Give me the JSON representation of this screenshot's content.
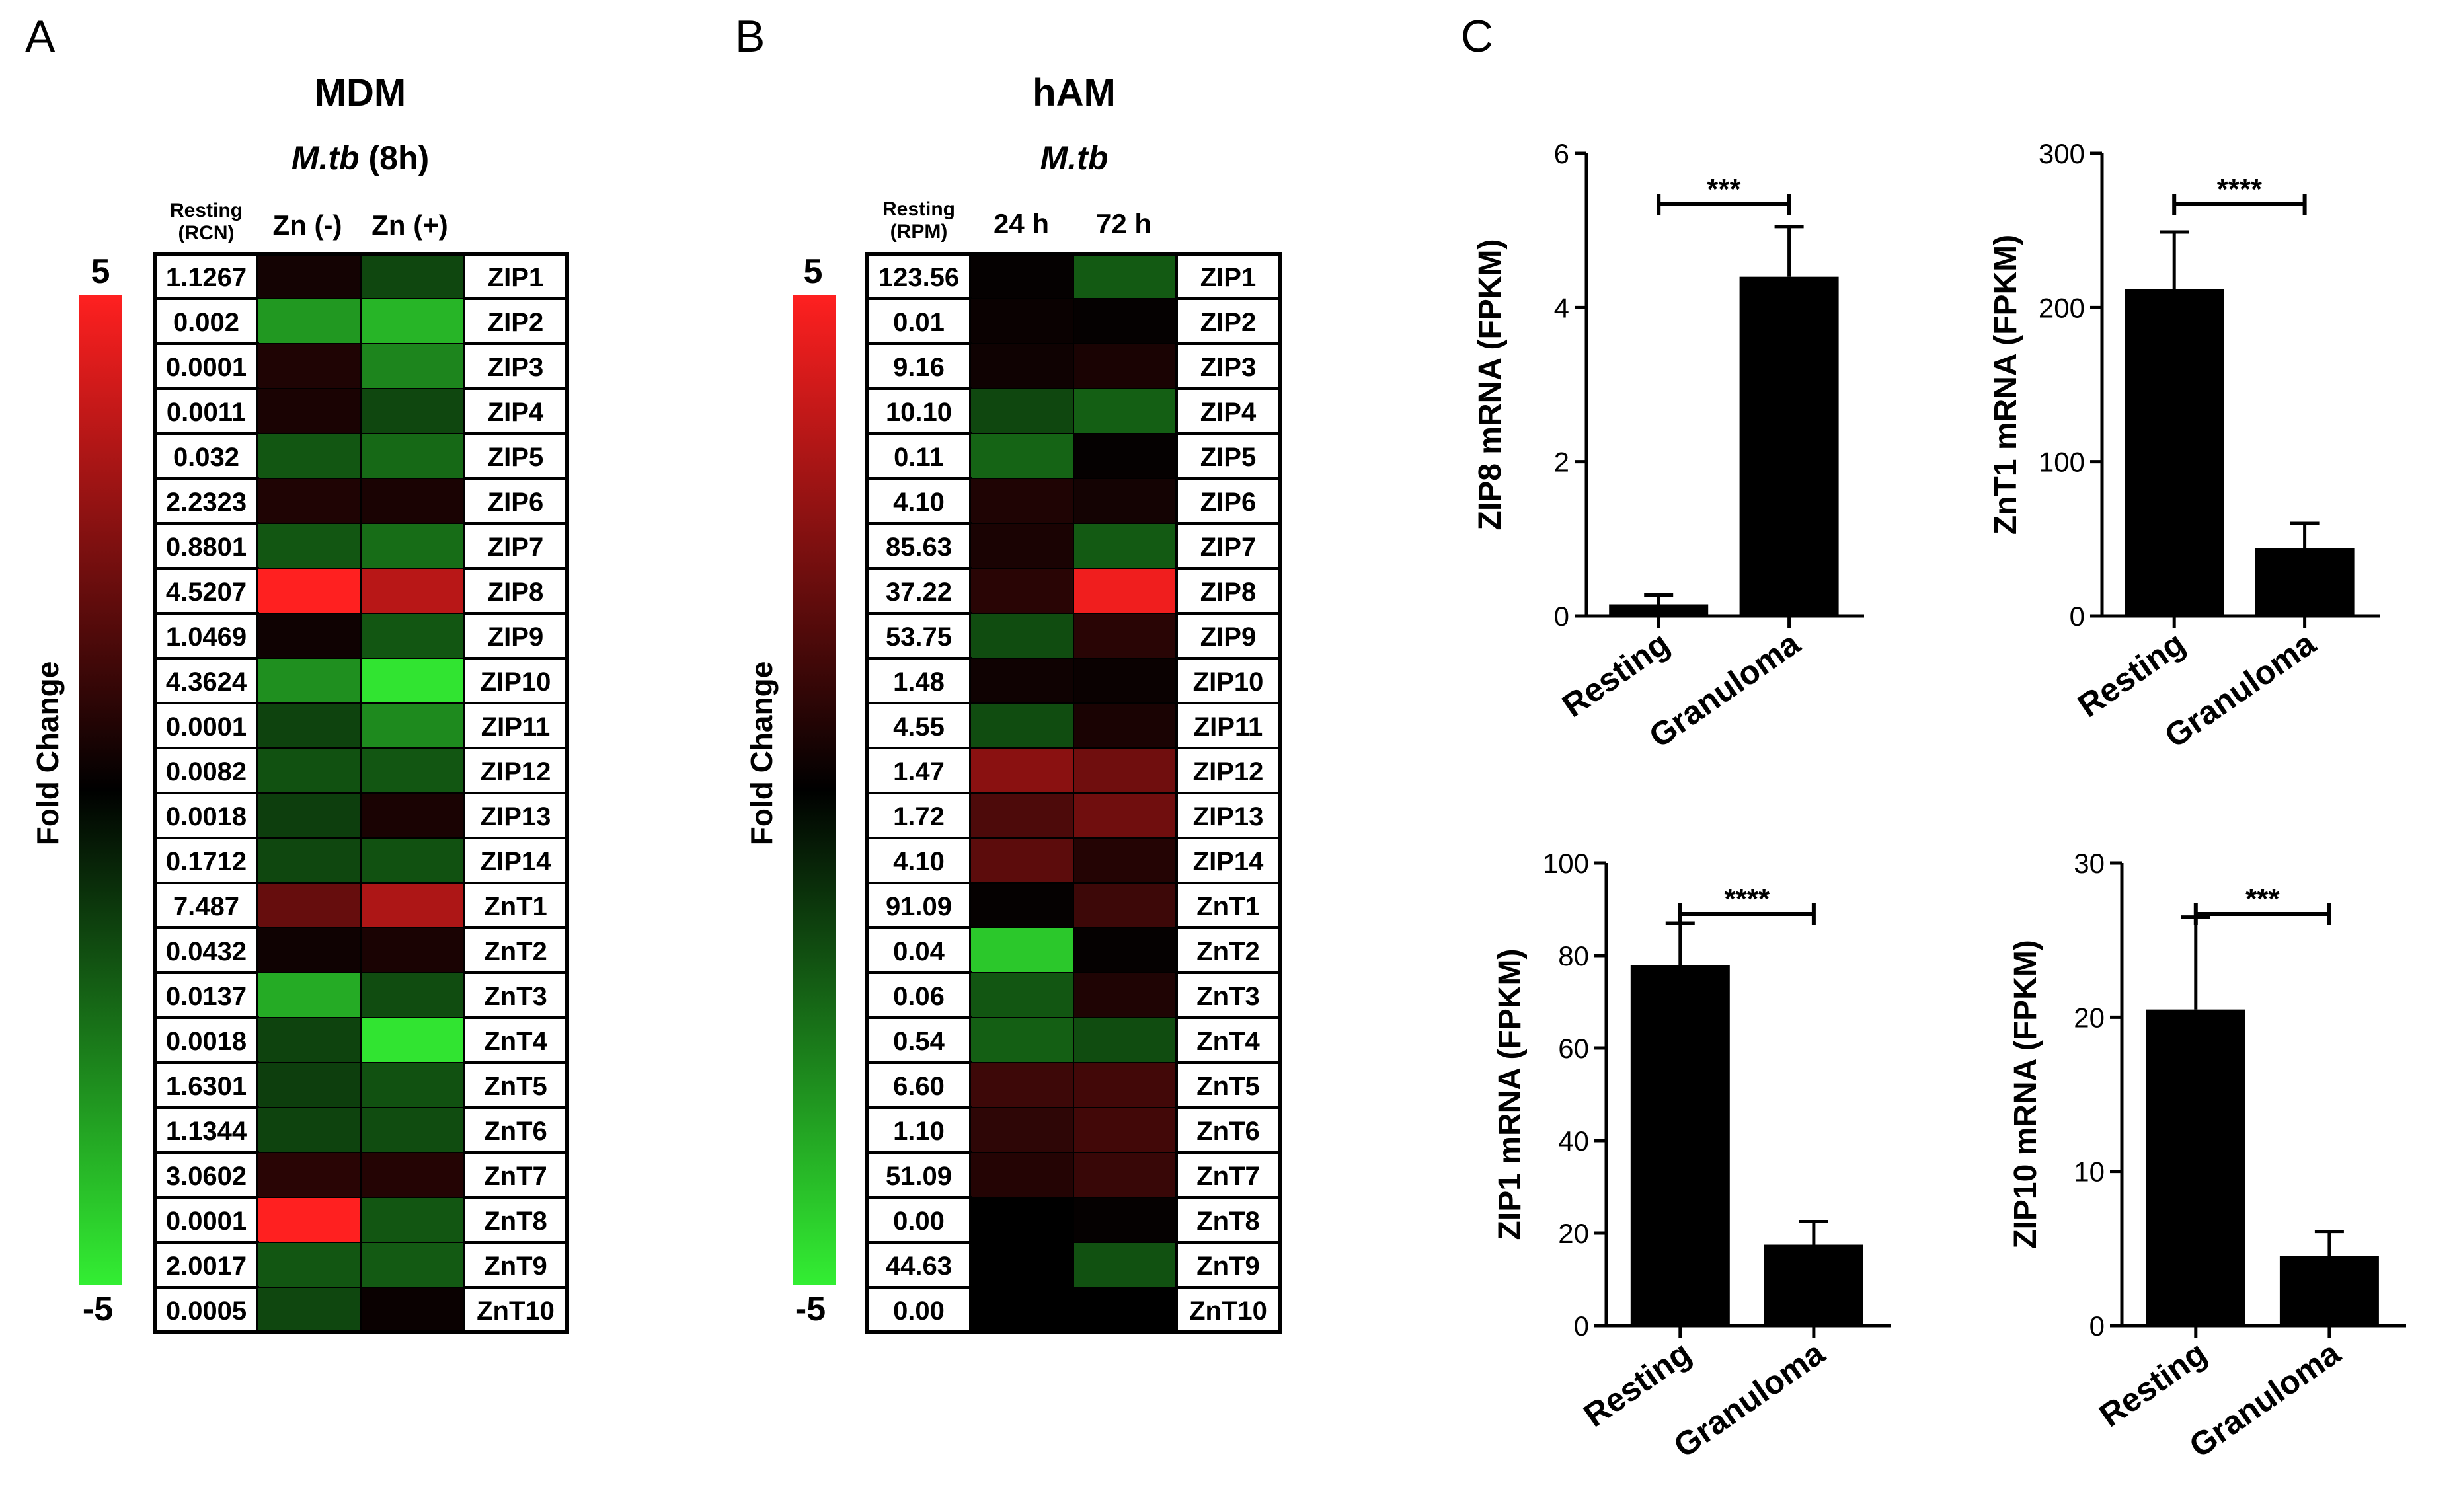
{
  "panel_labels": {
    "a": "A",
    "b": "B",
    "c": "C"
  },
  "panels": {
    "mdm": {
      "title": "MDM",
      "subtitle_italic": "M.tb",
      "subtitle_rest": " (8h)",
      "col_header_line1": "Resting",
      "col_header_line2": "(RCN)",
      "col_headers": [
        "Zn (-)",
        "Zn (+)"
      ],
      "colorbar": {
        "label": "Fold Change",
        "max_label": "5",
        "min_label": "-5",
        "max_color": "#ff2020",
        "mid_color": "#000000",
        "min_color": "#33ee33"
      }
    },
    "ham": {
      "title": "hAM",
      "subtitle_italic": "M.tb",
      "subtitle_rest": "",
      "col_header_line1": "Resting",
      "col_header_line2": "(RPM)",
      "col_headers": [
        "24 h",
        "72 h"
      ],
      "colorbar": {
        "label": "Fold Change",
        "max_label": "5",
        "min_label": "-5",
        "max_color": "#ff2020",
        "mid_color": "#000000",
        "min_color": "#33ee33"
      }
    }
  },
  "chart_data": [
    {
      "type": "heatmap",
      "panel": "A",
      "title": "MDM",
      "columns": [
        "Resting (RCN)",
        "Zn (-)",
        "Zn (+)"
      ],
      "value_range": [
        -5,
        5
      ],
      "rows": [
        "ZIP1",
        "ZIP2",
        "ZIP3",
        "ZIP4",
        "ZIP5",
        "ZIP6",
        "ZIP7",
        "ZIP8",
        "ZIP9",
        "ZIP10",
        "ZIP11",
        "ZIP12",
        "ZIP13",
        "ZIP14",
        "ZnT1",
        "ZnT2",
        "ZnT3",
        "ZnT4",
        "ZnT5",
        "ZnT6",
        "ZnT7",
        "ZnT8",
        "ZnT9",
        "ZnT10"
      ],
      "resting": [
        "1.1267",
        "0.002",
        "0.0001",
        "0.0011",
        "0.032",
        "2.2323",
        "0.8801",
        "4.5207",
        "1.0469",
        "4.3624",
        "0.0001",
        "0.0082",
        "0.0018",
        "0.1712",
        "7.487",
        "0.0432",
        "0.0137",
        "0.0018",
        "1.6301",
        "1.1344",
        "3.0602",
        "0.0001",
        "2.0017",
        "0.0005"
      ],
      "fold_change": [
        [
          0.4,
          -1.5
        ],
        [
          -3.2,
          -3.8
        ],
        [
          0.6,
          -2.8
        ],
        [
          0.5,
          -1.5
        ],
        [
          -1.8,
          -2.2
        ],
        [
          0.6,
          0.5
        ],
        [
          -1.8,
          -2.3
        ],
        [
          5.0,
          3.6
        ],
        [
          0.3,
          -1.8
        ],
        [
          -3.0,
          -4.8
        ],
        [
          -1.4,
          -2.9
        ],
        [
          -1.7,
          -1.8
        ],
        [
          -1.3,
          0.5
        ],
        [
          -1.5,
          -1.7
        ],
        [
          2.0,
          3.4
        ],
        [
          0.3,
          0.5
        ],
        [
          -3.6,
          -1.6
        ],
        [
          -1.4,
          -4.8
        ],
        [
          -1.3,
          -1.7
        ],
        [
          -1.4,
          -1.6
        ],
        [
          0.8,
          0.7
        ],
        [
          5.0,
          -1.8
        ],
        [
          -1.8,
          -1.9
        ],
        [
          -1.5,
          0.2
        ]
      ]
    },
    {
      "type": "heatmap",
      "panel": "B",
      "title": "hAM",
      "columns": [
        "Resting (RPM)",
        "24 h",
        "72 h"
      ],
      "value_range": [
        -5,
        5
      ],
      "rows": [
        "ZIP1",
        "ZIP2",
        "ZIP3",
        "ZIP4",
        "ZIP5",
        "ZIP6",
        "ZIP7",
        "ZIP8",
        "ZIP9",
        "ZIP10",
        "ZIP11",
        "ZIP12",
        "ZIP13",
        "ZIP14",
        "ZnT1",
        "ZnT2",
        "ZnT3",
        "ZnT4",
        "ZnT5",
        "ZnT6",
        "ZnT7",
        "ZnT8",
        "ZnT9",
        "ZnT10"
      ],
      "resting": [
        "123.56",
        "0.01",
        "9.16",
        "10.10",
        "0.11",
        "4.10",
        "85.63",
        "37.22",
        "53.75",
        "1.48",
        "4.55",
        "1.47",
        "1.72",
        "4.10",
        "91.09",
        "0.04",
        "0.06",
        "0.54",
        "6.60",
        "1.10",
        "51.09",
        "0.00",
        "44.63",
        "0.00"
      ],
      "fold_change": [
        [
          0.1,
          -1.9
        ],
        [
          0.2,
          0.1
        ],
        [
          0.3,
          0.5
        ],
        [
          -1.5,
          -2.0
        ],
        [
          -2.1,
          0.1
        ],
        [
          0.6,
          0.4
        ],
        [
          0.5,
          -1.9
        ],
        [
          0.8,
          4.7
        ],
        [
          -1.6,
          0.8
        ],
        [
          0.3,
          0.2
        ],
        [
          -1.6,
          0.5
        ],
        [
          2.7,
          2.2
        ],
        [
          1.5,
          2.2
        ],
        [
          1.8,
          0.7
        ],
        [
          0.1,
          1.2
        ],
        [
          -4.2,
          0.1
        ],
        [
          -1.8,
          0.6
        ],
        [
          -2.0,
          -1.6
        ],
        [
          1.2,
          1.3
        ],
        [
          0.9,
          1.3
        ],
        [
          0.7,
          1.1
        ],
        [
          0.0,
          0.1
        ],
        [
          0.0,
          -1.7
        ],
        [
          0.0,
          0.0
        ]
      ]
    },
    {
      "type": "bar",
      "panel": "C",
      "categories": [
        "Resting",
        "Granuloma"
      ],
      "values": [
        0.15,
        4.4
      ],
      "errors": [
        0.12,
        0.65
      ],
      "ylabel": "ZIP8 mRNA (FPKM)",
      "ylim": [
        0,
        6
      ],
      "yticks": [
        0,
        2,
        4,
        6
      ],
      "significance": "***"
    },
    {
      "type": "bar",
      "panel": "C",
      "categories": [
        "Resting",
        "Granuloma"
      ],
      "values": [
        212,
        44
      ],
      "errors": [
        37,
        16
      ],
      "ylabel": "ZnT1 mRNA (FPKM)",
      "ylim": [
        0,
        300
      ],
      "yticks": [
        0,
        100,
        200,
        300
      ],
      "significance": "****"
    },
    {
      "type": "bar",
      "panel": "C",
      "categories": [
        "Resting",
        "Granuloma"
      ],
      "values": [
        78,
        17.5
      ],
      "errors": [
        9,
        5
      ],
      "ylabel": "ZIP1 mRNA (FPKM)",
      "ylim": [
        0,
        100
      ],
      "yticks": [
        0,
        20,
        40,
        60,
        80,
        100
      ],
      "significance": "****"
    },
    {
      "type": "bar",
      "panel": "C",
      "categories": [
        "Resting",
        "Granuloma"
      ],
      "values": [
        20.5,
        4.5
      ],
      "errors": [
        6,
        1.6
      ],
      "ylabel": "ZIP10 mRNA (FPKM)",
      "ylim": [
        0,
        30
      ],
      "yticks": [
        0,
        10,
        20,
        30
      ],
      "significance": "***"
    }
  ]
}
